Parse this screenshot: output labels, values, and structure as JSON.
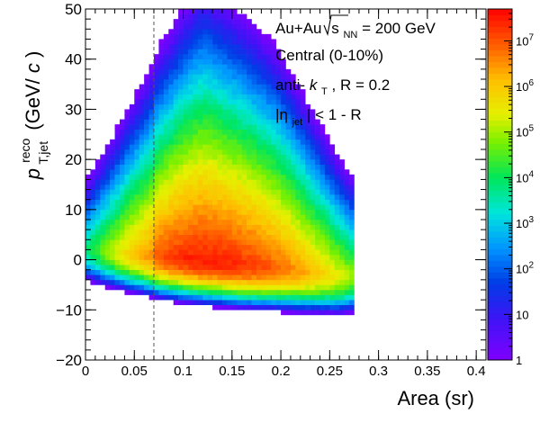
{
  "chart_data": {
    "type": "heatmap",
    "title": "",
    "xlabel": "Area (sr)",
    "ylabel": {
      "main": "p",
      "sup": "reco",
      "sub": "T,jet",
      "unit_open": "(GeV/",
      "unit_c": "c",
      "unit_close": ")"
    },
    "xlim": [
      0,
      0.41
    ],
    "ylim": [
      -20,
      50
    ],
    "x_ticks": [
      0,
      0.05,
      0.1,
      0.15,
      0.2,
      0.25,
      0.3,
      0.35,
      0.4
    ],
    "x_tick_labels": [
      "0",
      "0.05",
      "0.1",
      "0.15",
      "0.2",
      "0.25",
      "0.3",
      "0.35",
      "0.4"
    ],
    "y_ticks": [
      -20,
      -10,
      0,
      10,
      20,
      30,
      40,
      50
    ],
    "y_tick_labels": [
      "−20",
      "−10",
      "0",
      "10",
      "20",
      "30",
      "40",
      "50"
    ],
    "colorbar": {
      "scale": "log",
      "range": [
        1,
        50000000
      ],
      "ticks": [
        {
          "value": 1,
          "label": "1"
        },
        {
          "value": 10,
          "label": "10"
        },
        {
          "value": 100,
          "base": "10",
          "exp": "2"
        },
        {
          "value": 1000,
          "base": "10",
          "exp": "3"
        },
        {
          "value": 10000,
          "base": "10",
          "exp": "4"
        },
        {
          "value": 100000,
          "base": "10",
          "exp": "5"
        },
        {
          "value": 1000000,
          "base": "10",
          "exp": "6"
        },
        {
          "value": 10000000,
          "base": "10",
          "exp": "7"
        }
      ]
    },
    "cut_line": {
      "x": 0.07,
      "style": "dashed"
    },
    "annotations": {
      "line1_left": "Au+Au",
      "line1_s": "s",
      "line1_sub": "NN",
      "line1_right": " = 200 GeV",
      "line2": "Central (0-10%)",
      "line3_left": "anti-",
      "line3_k": "k",
      "line3_sub": "T",
      "line3_right": ", R = 0.2",
      "line4_eta": "|η",
      "line4_sub": "jet",
      "line4_right": "| < 1 - R"
    },
    "density_model": {
      "description_of_shape": "2D histogram of reconstructed jet pT vs jet area; peak near (0.12 sr, 0 GeV/c)",
      "x_bin_width": 0.005,
      "y_bin_width": 1,
      "area_peak": 0.12,
      "area_sigma_low": 0.03,
      "area_sigma_high": 0.045,
      "peak_counts": 30000000,
      "y_center": [
        [
          0,
          2.5
        ],
        [
          0.1,
          0.5
        ],
        [
          0.2,
          -1.5
        ],
        [
          0.26,
          -3
        ]
      ],
      "y_sigma_neg": 1.6,
      "y_sigma_pos": [
        [
          0,
          2.5
        ],
        [
          0.12,
          6
        ],
        [
          0.2,
          5
        ],
        [
          0.27,
          3
        ]
      ],
      "area_support": [
        0,
        0.275
      ]
    }
  }
}
